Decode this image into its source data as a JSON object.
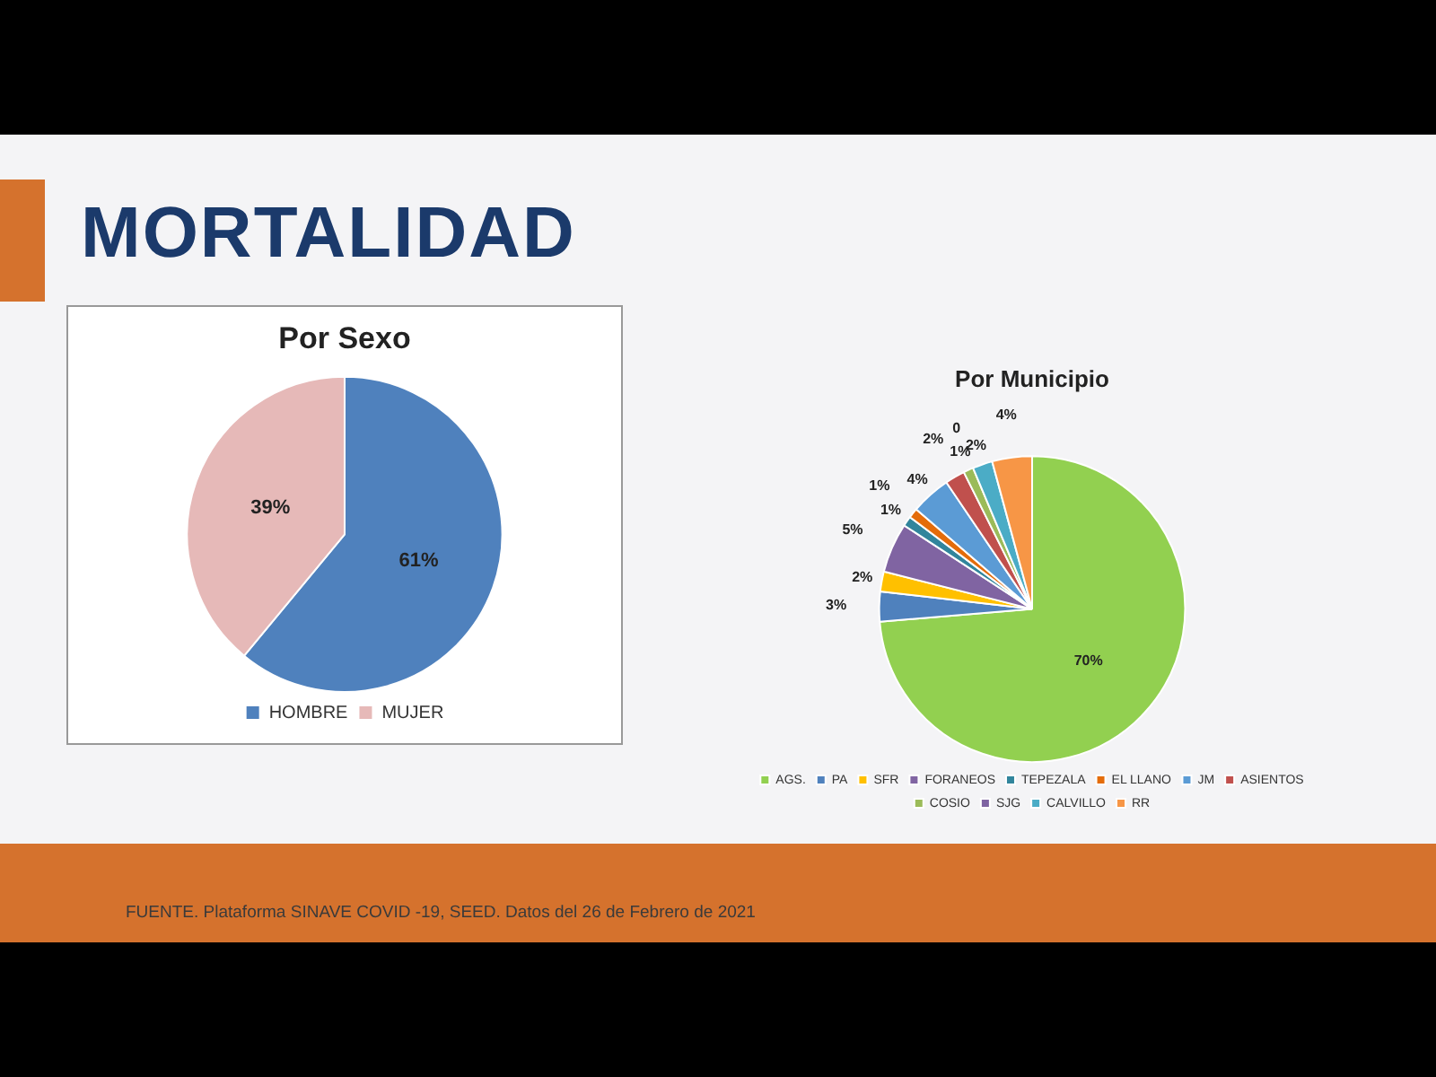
{
  "chart_data": [
    {
      "type": "pie",
      "title": "Por Sexo",
      "categories": [
        "HOMBRE",
        "MUJER"
      ],
      "values": [
        61,
        39
      ],
      "colors": [
        "#4f81bd",
        "#e6b9b8"
      ],
      "value_labels": [
        "61%",
        "39%"
      ],
      "legend": "bottom",
      "annotations": [
        "MORTALIDAD"
      ]
    },
    {
      "type": "pie",
      "title": "Por Municipio",
      "categories": [
        "AGS.",
        "PA",
        "SFR",
        "FORANEOS",
        "TEPEZALA",
        "EL LLANO",
        "JM",
        "ASIENTOS",
        "COSIO",
        "SJG",
        "CALVILLO",
        "RR"
      ],
      "values": [
        70,
        3,
        2,
        5,
        1,
        1,
        4,
        2,
        1,
        0,
        2,
        4
      ],
      "colors": [
        "#92d050",
        "#4f81bd",
        "#ffc000",
        "#8064a2",
        "#31859c",
        "#e46c0a",
        "#5b9bd5",
        "#c0504d",
        "#9bbb59",
        "#7f64a2",
        "#4bacc6",
        "#f79646"
      ],
      "value_labels": [
        "70%",
        "3%",
        "2%",
        "5%",
        "1%",
        "1%",
        "4%",
        "2%",
        "1%",
        "0",
        "2%",
        "4%"
      ],
      "legend": "bottom",
      "annotations": [
        "FUENTE. Plataforma SINAVE COVID -19, SEED. Datos del 26 de Febrero de 2021"
      ]
    }
  ]
}
